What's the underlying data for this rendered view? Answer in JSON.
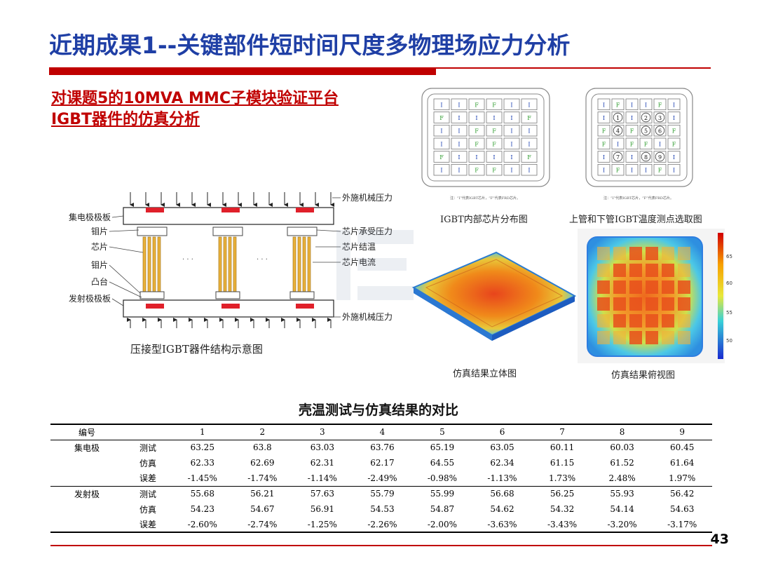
{
  "title": "近期成果1--关键部件短时间尺度多物理场应力分析",
  "subtitle": [
    "对课题5的10MVA MMC子模块验证平台",
    "IGBT器件的仿真分析"
  ],
  "diagram": {
    "caption": "压接型IGBT器件结构示意图",
    "labels_left": [
      "集电极极板",
      "钼片",
      "芯片",
      "钼片",
      "凸台",
      "发射极极板"
    ],
    "labels_right": [
      "外施机械压力",
      "芯片承受压力",
      "芯片结温",
      "芯片电流",
      "外施机械压力"
    ],
    "ellipsis": "· · ·"
  },
  "chip_map_1": {
    "caption": "IGBT内部芯片分布图",
    "note": "注：“I”代表IGBT芯片，“F”代表FRD芯片。",
    "grid": [
      [
        "I",
        "I",
        "F",
        "F",
        "I",
        "I"
      ],
      [
        "F",
        "I",
        "I",
        "I",
        "I",
        "F"
      ],
      [
        "I",
        "I",
        "F",
        "F",
        "I",
        "I"
      ],
      [
        "I",
        "I",
        "F",
        "F",
        "I",
        "I"
      ],
      [
        "F",
        "I",
        "I",
        "I",
        "I",
        "F"
      ],
      [
        "I",
        "I",
        "F",
        "F",
        "I",
        "I"
      ]
    ]
  },
  "chip_map_2": {
    "caption": "上管和下管IGBT温度测点选取图",
    "note": "注：“I”代表IGBT芯片，“F”代表FRD芯片。",
    "grid": [
      [
        "I",
        "F",
        "I",
        "I",
        "F",
        "I"
      ],
      [
        "I",
        "1",
        "I",
        "2",
        "3",
        "I"
      ],
      [
        "F",
        "4",
        "F",
        "5",
        "6",
        "F"
      ],
      [
        "F",
        "I",
        "F",
        "F",
        "I",
        "F"
      ],
      [
        "I",
        "7",
        "I",
        "8",
        "9",
        "I"
      ],
      [
        "I",
        "F",
        "I",
        "I",
        "F",
        "I"
      ]
    ]
  },
  "sim_3d": {
    "caption": "仿真结果立体图"
  },
  "sim_top": {
    "caption": "仿真结果俯视图",
    "scale_ticks": [
      "65",
      "60",
      "55",
      "50"
    ]
  },
  "table": {
    "title": "壳温测试与仿真结果的对比",
    "header": [
      "编号",
      "",
      "1",
      "2",
      "3",
      "4",
      "5",
      "6",
      "7",
      "8",
      "9"
    ],
    "groups": [
      {
        "name": "集电极",
        "rows": [
          {
            "label": "测试",
            "values": [
              "63.25",
              "63.8",
              "63.03",
              "63.76",
              "65.19",
              "63.05",
              "60.11",
              "60.03",
              "60.45"
            ]
          },
          {
            "label": "仿真",
            "values": [
              "62.33",
              "62.69",
              "62.31",
              "62.17",
              "64.55",
              "62.34",
              "61.15",
              "61.52",
              "61.64"
            ]
          },
          {
            "label": "误差",
            "values": [
              "-1.45%",
              "-1.74%",
              "-1.14%",
              "-2.49%",
              "-0.98%",
              "-1.13%",
              "1.73%",
              "2.48%",
              "1.97%"
            ]
          }
        ]
      },
      {
        "name": "发射极",
        "rows": [
          {
            "label": "测试",
            "values": [
              "55.68",
              "56.21",
              "57.63",
              "55.79",
              "55.99",
              "56.68",
              "56.25",
              "55.93",
              "56.42"
            ]
          },
          {
            "label": "仿真",
            "values": [
              "54.23",
              "54.67",
              "56.91",
              "54.53",
              "54.87",
              "54.62",
              "54.32",
              "54.14",
              "54.63"
            ]
          },
          {
            "label": "误差",
            "values": [
              "-2.60%",
              "-2.74%",
              "-1.25%",
              "-2.26%",
              "-2.00%",
              "-3.63%",
              "-3.43%",
              "-3.20%",
              "-3.17%"
            ]
          }
        ]
      }
    ]
  },
  "page_number": "43",
  "colors": {
    "title": "#1f3fa5",
    "accent": "#c00000"
  }
}
